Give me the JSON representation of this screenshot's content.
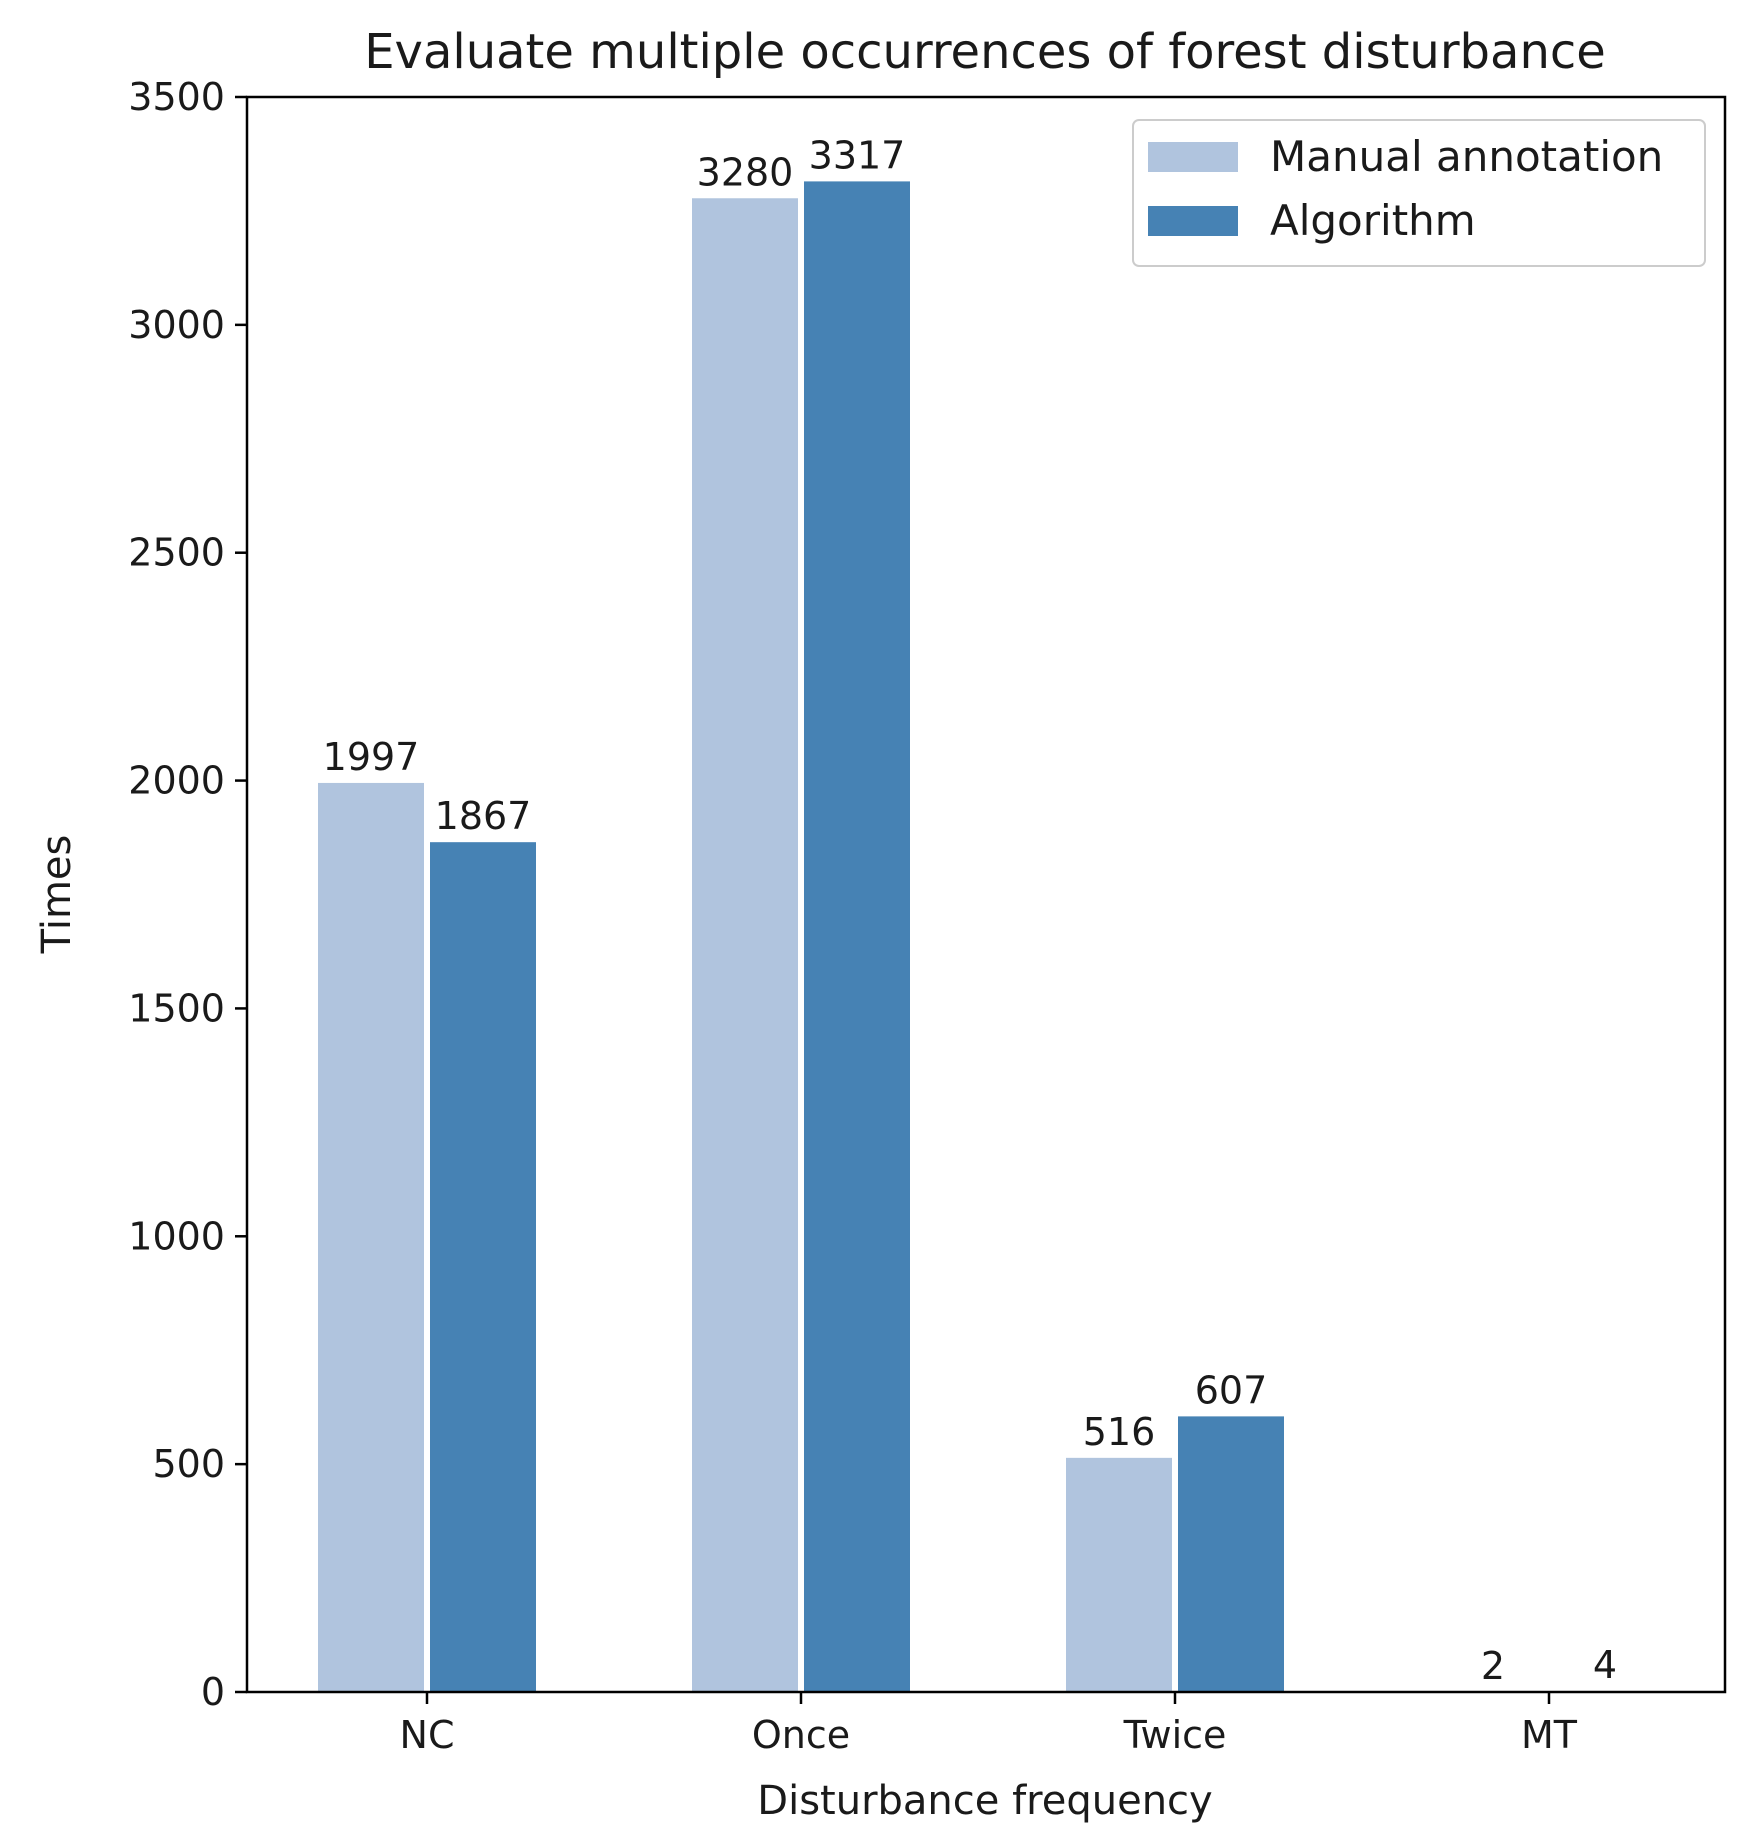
{
  "chart_data": {
    "type": "bar",
    "title": "Evaluate multiple occurrences of forest disturbance",
    "xlabel": "Disturbance frequency",
    "ylabel": "Times",
    "categories": [
      "NC",
      "Once",
      "Twice",
      "MT"
    ],
    "series": [
      {
        "name": "Manual annotation",
        "color": "#b0c4de",
        "values": [
          1997,
          3280,
          516,
          2
        ]
      },
      {
        "name": "Algorithm",
        "color": "#4682b4",
        "values": [
          1867,
          3317,
          607,
          4
        ]
      }
    ],
    "ylim": [
      0,
      3500
    ],
    "yticks": [
      0,
      500,
      1000,
      1500,
      2000,
      2500,
      3000,
      3500
    ],
    "grid": false,
    "legend_position": "top-right"
  }
}
